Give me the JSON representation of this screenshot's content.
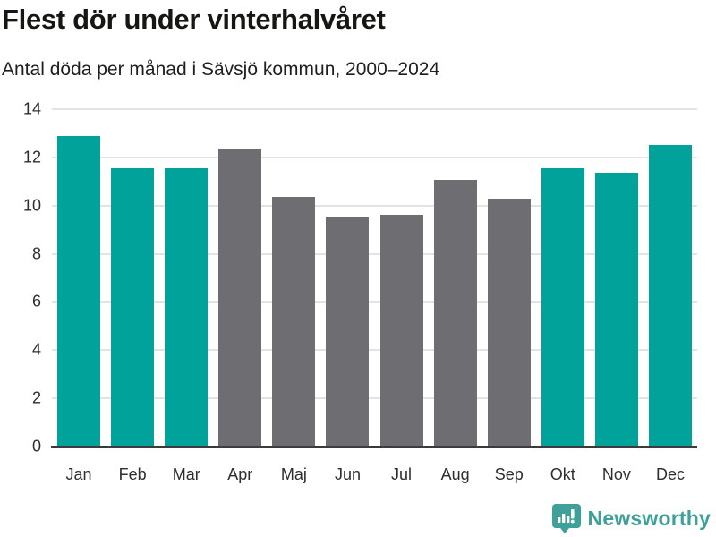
{
  "header": {
    "title": "Flest dör under vinterhalvåret",
    "subtitle": "Antal döda per månad i Sävsjö kommun, 2000–2024"
  },
  "chart_data": {
    "type": "bar",
    "title": "Flest dör under vinterhalvåret",
    "subtitle": "Antal döda per månad i Sävsjö kommun, 2000–2024",
    "categories": [
      "Jan",
      "Feb",
      "Mar",
      "Apr",
      "Maj",
      "Jun",
      "Jul",
      "Aug",
      "Sep",
      "Okt",
      "Nov",
      "Dec"
    ],
    "values": [
      12.9,
      11.55,
      11.55,
      12.35,
      10.35,
      9.5,
      9.6,
      11.05,
      10.3,
      11.55,
      11.35,
      12.5
    ],
    "bar_color_keys": [
      "teal",
      "teal",
      "teal",
      "gray",
      "gray",
      "gray",
      "gray",
      "gray",
      "gray",
      "teal",
      "teal",
      "teal"
    ],
    "colors": {
      "teal": "#00a29a",
      "gray": "#6d6d72"
    },
    "xlabel": "",
    "ylabel": "",
    "ylim": [
      0,
      14
    ],
    "yticks": [
      0,
      2,
      4,
      6,
      8,
      10,
      12,
      14
    ],
    "grid": true,
    "legend": false,
    "gridline_color": "#e3e3e3",
    "axis_line_color": "#3b3b3b"
  },
  "footer": {
    "brand": "Newsworthy",
    "brand_color": "#3fa099",
    "logo_icon": "bar-chart-speech-bubble-icon"
  }
}
